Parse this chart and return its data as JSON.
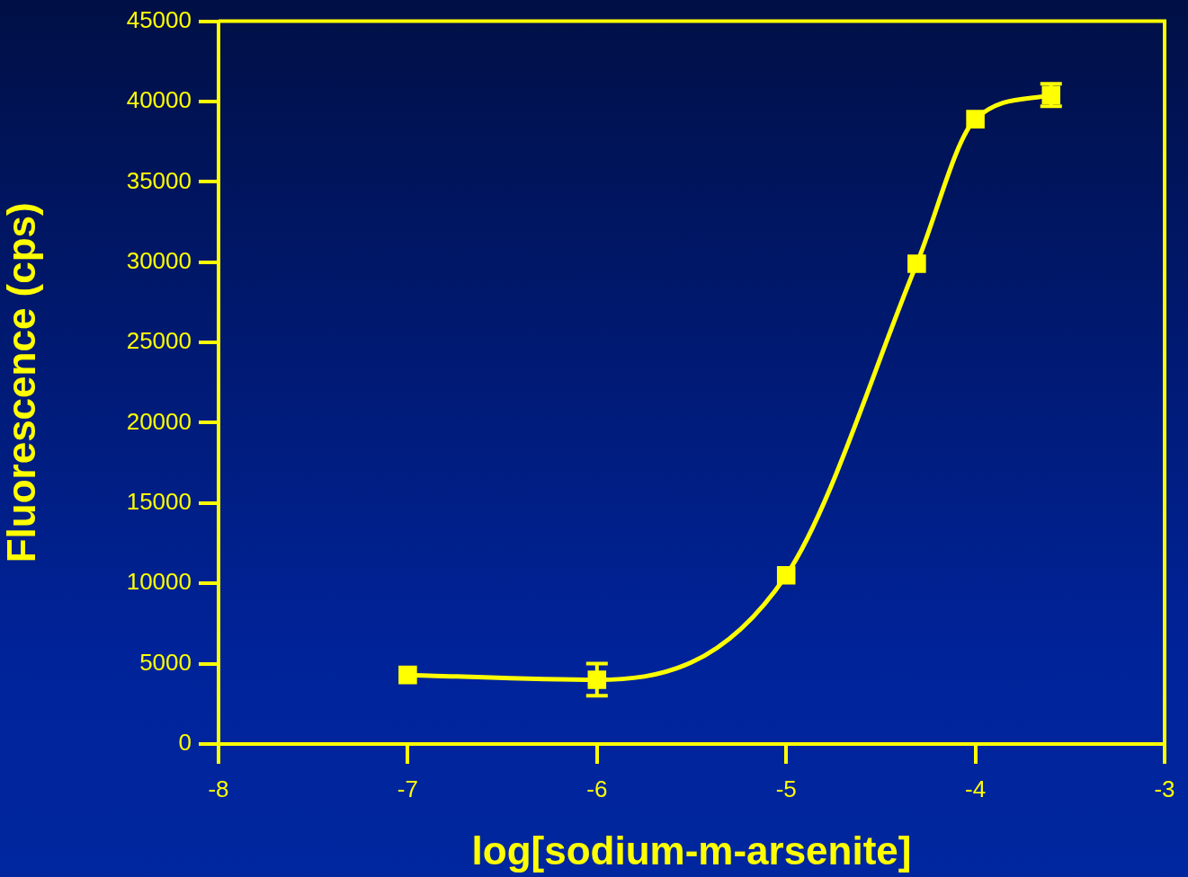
{
  "chart_data": {
    "type": "line",
    "xlabel": "log[sodium-m-arsenite]",
    "ylabel": "Fluorescence (cps)",
    "x": [
      -7,
      -6,
      -5,
      -4.31,
      -4,
      -3.6
    ],
    "series": [
      {
        "color": "#ffff00",
        "values": [
          4300,
          4000,
          10500,
          29900,
          38900,
          40400
        ],
        "errors": [
          null,
          1000,
          null,
          null,
          null,
          700
        ]
      }
    ],
    "xlim": [
      -8,
      -3
    ],
    "xticks": [
      -8,
      -7,
      -6,
      -5,
      -4,
      -3
    ],
    "ylim": [
      0,
      45000
    ],
    "yticks": [
      0,
      5000,
      10000,
      15000,
      20000,
      25000,
      30000,
      35000,
      40000,
      45000
    ],
    "grid": false,
    "legend": false,
    "marker": "square",
    "line_style": "solid"
  }
}
